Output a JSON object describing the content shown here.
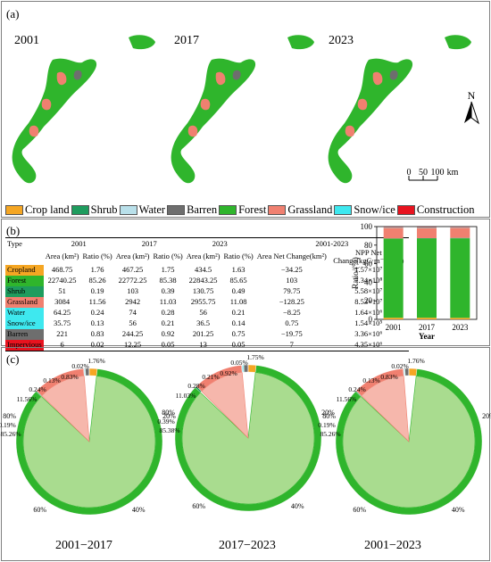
{
  "panel_a": {
    "label": "(a)",
    "years": [
      "2001",
      "2017",
      "2023"
    ],
    "north": "N",
    "scale": {
      "ticks": [
        "0",
        "50",
        "100"
      ],
      "unit": "km"
    }
  },
  "legend": [
    {
      "label": "Crop land",
      "color": "#f5a623"
    },
    {
      "label": "Shrub",
      "color": "#1e9c5e"
    },
    {
      "label": "Water",
      "color": "#b9e0ea"
    },
    {
      "label": "Barren",
      "color": "#6e6e6e"
    },
    {
      "label": "Forest",
      "color": "#2fb52c"
    },
    {
      "label": "Grassland",
      "color": "#f08070"
    },
    {
      "label": "Snow/ice",
      "color": "#3ee8ef"
    },
    {
      "label": "Construction",
      "color": "#e8131f"
    }
  ],
  "panel_b": {
    "label": "(b)",
    "table": {
      "type_header": "Type",
      "year_headers": [
        "2001",
        "2017",
        "2023",
        "2001-2023"
      ],
      "sub_headers": [
        "Area (km²)",
        "Ratio (%)",
        "Area (km²)",
        "Ratio (%)",
        "Area (km²)",
        "Ratio (%)",
        "Area Net Change(km²)",
        "NPP Net Change(kgC·m⁻²·yr⁻¹)"
      ],
      "rows": [
        {
          "type": "Cropland",
          "color": "#f5a623",
          "cells": [
            "468.75",
            "1.76",
            "467.25",
            "1.75",
            "434.5",
            "1.63",
            "−34.25",
            "1.57×10⁷"
          ]
        },
        {
          "type": "Forest",
          "color": "#2fb52c",
          "cells": [
            "22740.25",
            "85.26",
            "22772.25",
            "85.38",
            "22843.25",
            "85.65",
            "103",
            "7.34×10⁸"
          ]
        },
        {
          "type": "Shrub",
          "color": "#1e9c5e",
          "cells": [
            "51",
            "0.19",
            "103",
            "0.39",
            "130.75",
            "0.49",
            "79.75",
            "5.58×10⁷"
          ]
        },
        {
          "type": "Grassland",
          "color": "#f08070",
          "cells": [
            "3084",
            "11.56",
            "2942",
            "11.03",
            "2955.75",
            "11.08",
            "−128.25",
            "8.53×10⁷"
          ]
        },
        {
          "type": "Water",
          "color": "#3ee8ef",
          "cells": [
            "64.25",
            "0.24",
            "74",
            "0.28",
            "56",
            "0.21",
            "−8.25",
            "1.64×10⁶"
          ]
        },
        {
          "type": "Snow/ice",
          "color": "#3ee8ef",
          "cells": [
            "35.75",
            "0.13",
            "56",
            "0.21",
            "36.5",
            "0.14",
            "0.75",
            "1.54×10⁵"
          ]
        },
        {
          "type": "Barren",
          "color": "#6e6e6e",
          "cells": [
            "221",
            "0.83",
            "244.25",
            "0.92",
            "201.25",
            "0.75",
            "−19.75",
            "3.36×10⁶"
          ]
        },
        {
          "type": "Impervious",
          "color": "#e8131f",
          "cells": [
            "6",
            "0.02",
            "12.25",
            "0.05",
            "13",
            "0.05",
            "7",
            "4.35×10⁶"
          ]
        }
      ]
    }
  },
  "chart_data": [
    {
      "type": "bar",
      "stacked": true,
      "categories": [
        "2001",
        "2017",
        "2023"
      ],
      "xlabel": "Year",
      "ylabel": "Ratio/(%)",
      "ylim": [
        0,
        100
      ],
      "yticks": [
        "0",
        "20",
        "40",
        "60",
        "80",
        "100"
      ],
      "series": [
        {
          "color": "#f5a623",
          "values": [
            1.76,
            1.75,
            1.63
          ]
        },
        {
          "color": "#2fb52c",
          "values": [
            85.26,
            85.38,
            85.65
          ]
        },
        {
          "color": "#1e9c5e",
          "values": [
            0.19,
            0.39,
            0.49
          ]
        },
        {
          "color": "#f08070",
          "values": [
            11.56,
            11.03,
            11.08
          ]
        },
        {
          "color": "#b9e0ea",
          "values": [
            0.24,
            0.28,
            0.21
          ]
        },
        {
          "color": "#3ee8ef",
          "values": [
            0.13,
            0.21,
            0.14
          ]
        },
        {
          "color": "#6e6e6e",
          "values": [
            0.83,
            0.92,
            0.75
          ]
        },
        {
          "color": "#e8131f",
          "values": [
            0.02,
            0.05,
            0.05
          ]
        }
      ]
    },
    {
      "type": "pie",
      "caption": "2001−2017",
      "pct_ticks": [
        "20%",
        "40%",
        "60%",
        "80%"
      ],
      "labels": [
        "1.76%",
        "85.26%",
        "0.19%",
        "11.56%",
        "0.24%",
        "0.13%",
        "0.83%",
        "0.02%"
      ],
      "values": [
        1.76,
        85.26,
        0.19,
        11.56,
        0.24,
        0.13,
        0.83,
        0.02
      ]
    },
    {
      "type": "pie",
      "caption": "2017−2023",
      "pct_ticks": [
        "20%",
        "40%",
        "60%",
        "80%"
      ],
      "labels": [
        "1.75%",
        "85.38%",
        "0.39%",
        "11.03%",
        "0.28%",
        "0.21%",
        "0.92%",
        "0.05%"
      ],
      "values": [
        1.75,
        85.38,
        0.39,
        11.03,
        0.28,
        0.21,
        0.92,
        0.05
      ]
    },
    {
      "type": "pie",
      "caption": "2001−2023",
      "pct_ticks": [
        "20%",
        "40%",
        "60%",
        "80%"
      ],
      "labels": [
        "1.76%",
        "85.26%",
        "0.19%",
        "11.56%",
        "0.24%",
        "0.13%",
        "0.83%",
        "0.02%"
      ],
      "values": [
        1.76,
        85.26,
        0.19,
        11.56,
        0.24,
        0.13,
        0.83,
        0.02
      ]
    }
  ],
  "panel_c": {
    "label": "(c)"
  }
}
